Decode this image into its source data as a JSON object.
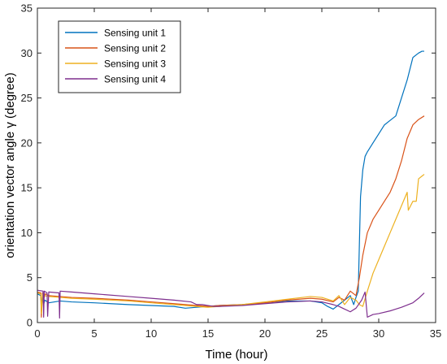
{
  "chart_data": {
    "type": "line",
    "xlabel": "Time (hour)",
    "ylabel": "orientation vector angle γ (degree)",
    "xlim": [
      0,
      35
    ],
    "ylim": [
      0,
      35
    ],
    "xticks": [
      0,
      5,
      10,
      15,
      20,
      25,
      30,
      35
    ],
    "yticks": [
      0,
      5,
      10,
      15,
      20,
      25,
      30,
      35
    ],
    "grid": false,
    "legend_position": "top-left",
    "series": [
      {
        "name": "Sensing unit 1",
        "color": "#0072BD",
        "x": [
          0,
          0.3,
          0.35,
          0.45,
          0.55,
          0.65,
          1.0,
          2.0,
          3.0,
          5.0,
          8.0,
          10.0,
          12.0,
          13.0,
          14.0,
          15.0,
          16.0,
          18.0,
          20.0,
          22.0,
          24.0,
          25.0,
          25.5,
          26.0,
          26.5,
          27.0,
          27.5,
          27.8,
          28.0,
          28.2,
          28.4,
          28.5,
          28.6,
          28.8,
          29.0,
          29.5,
          30.0,
          30.5,
          31.0,
          31.5,
          32.0,
          32.5,
          33.0,
          33.5,
          33.8,
          34.0
        ],
        "y": [
          3.2,
          3.0,
          1.8,
          3.1,
          2.0,
          2.5,
          2.2,
          2.4,
          2.3,
          2.2,
          2.0,
          1.9,
          1.8,
          1.6,
          1.7,
          1.8,
          1.9,
          2.0,
          2.2,
          2.4,
          2.4,
          2.2,
          1.8,
          1.5,
          2.0,
          2.5,
          3.0,
          2.0,
          2.8,
          3.5,
          14.0,
          15.5,
          17.0,
          18.5,
          19.0,
          20.0,
          21.0,
          22.0,
          22.5,
          23.0,
          25.0,
          27.0,
          29.5,
          30.0,
          30.2,
          30.2
        ]
      },
      {
        "name": "Sensing unit 2",
        "color": "#D95319",
        "x": [
          0,
          0.3,
          0.35,
          0.45,
          0.6,
          0.7,
          1.0,
          2.0,
          3.0,
          5.0,
          8.0,
          10.0,
          12.0,
          14.0,
          15.0,
          16.0,
          18.0,
          20.0,
          22.0,
          24.0,
          25.0,
          26.0,
          26.5,
          27.0,
          27.5,
          28.0,
          28.3,
          28.6,
          29.0,
          29.5,
          30.0,
          30.5,
          31.0,
          31.5,
          32.0,
          32.5,
          33.0,
          33.5,
          34.0
        ],
        "y": [
          3.4,
          3.3,
          0.6,
          3.3,
          2.8,
          3.2,
          3.0,
          2.9,
          2.8,
          2.7,
          2.5,
          2.3,
          2.1,
          1.9,
          1.8,
          1.9,
          2.0,
          2.2,
          2.5,
          2.7,
          2.6,
          2.3,
          2.8,
          2.5,
          3.5,
          3.0,
          5.0,
          7.5,
          10.0,
          11.5,
          12.5,
          13.5,
          14.5,
          16.0,
          18.0,
          20.5,
          22.0,
          22.6,
          23.0
        ]
      },
      {
        "name": "Sensing unit 3",
        "color": "#EDB120",
        "x": [
          0,
          0.3,
          0.35,
          0.45,
          0.6,
          1.0,
          2.0,
          3.0,
          5.0,
          8.0,
          10.0,
          12.0,
          14.0,
          15.0,
          16.0,
          18.0,
          20.0,
          22.0,
          24.0,
          25.0,
          26.0,
          26.5,
          27.0,
          27.5,
          28.0,
          28.3,
          28.6,
          29.0,
          29.5,
          30.0,
          30.5,
          31.0,
          31.5,
          32.0,
          32.5,
          32.6,
          33.0,
          33.3,
          33.5,
          33.8,
          34.0
        ],
        "y": [
          3.3,
          3.2,
          1.0,
          3.2,
          3.0,
          2.9,
          2.8,
          2.7,
          2.6,
          2.4,
          2.2,
          2.0,
          1.8,
          1.7,
          1.8,
          2.0,
          2.3,
          2.6,
          2.9,
          2.8,
          2.4,
          3.0,
          2.0,
          2.8,
          2.5,
          2.0,
          1.8,
          3.5,
          5.5,
          7.0,
          8.5,
          10.0,
          11.5,
          13.0,
          14.5,
          12.5,
          13.5,
          13.5,
          16.0,
          16.3,
          16.5
        ]
      },
      {
        "name": "Sensing unit 4",
        "color": "#7E2F8E",
        "x": [
          0,
          0.5,
          0.55,
          0.6,
          0.85,
          0.9,
          1.0,
          1.9,
          1.95,
          2.0,
          3.0,
          5.0,
          8.0,
          10.0,
          12.0,
          13.5,
          14.0,
          14.5,
          15.5,
          16.0,
          18.0,
          20.0,
          22.0,
          24.0,
          25.0,
          26.0,
          26.5,
          27.0,
          27.5,
          28.0,
          28.5,
          28.8,
          29.0,
          29.5,
          30.0,
          31.0,
          32.0,
          33.0,
          33.5,
          34.0
        ],
        "y": [
          3.6,
          3.5,
          0.6,
          3.5,
          3.3,
          0.7,
          3.4,
          3.3,
          0.5,
          3.5,
          3.4,
          3.2,
          2.9,
          2.7,
          2.5,
          2.3,
          2.0,
          2.0,
          1.8,
          1.8,
          1.9,
          2.1,
          2.3,
          2.4,
          2.3,
          2.0,
          1.8,
          1.5,
          1.2,
          1.6,
          2.5,
          3.4,
          0.6,
          0.9,
          1.0,
          1.3,
          1.7,
          2.2,
          2.7,
          3.3
        ]
      }
    ]
  }
}
